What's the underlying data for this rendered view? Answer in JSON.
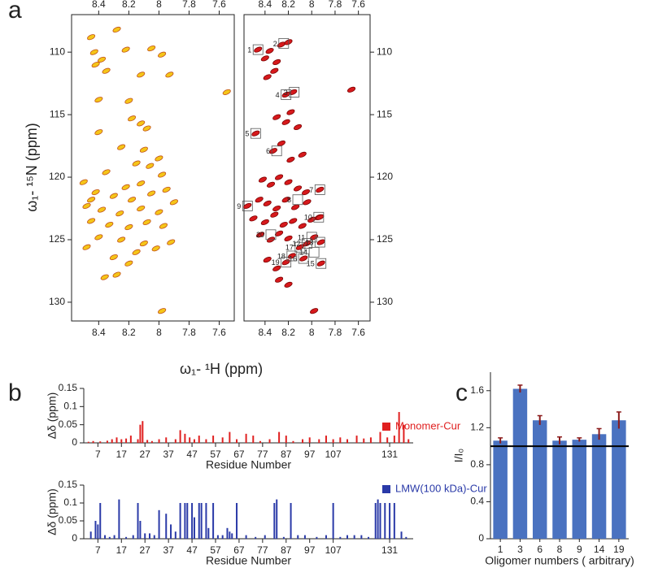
{
  "panel_labels": [
    "a",
    "b",
    "c"
  ],
  "chart_data": [
    {
      "type": "scatter",
      "color": "#f5c518",
      "stroke": "#c0501a",
      "ylabel": "ω₁- ¹⁵N (ppm)",
      "xlabel": "ω₁- ¹H (ppm)",
      "xlim": [
        7.5,
        8.58
      ],
      "invert_x": true,
      "xticks": [
        8.4,
        8.2,
        8.0,
        7.8,
        7.6
      ],
      "ylim": [
        107,
        131.5
      ],
      "invert_y": true,
      "yticks": [
        110,
        115,
        120,
        125,
        130
      ],
      "x": [
        8.45,
        8.28,
        8.43,
        8.38,
        8.42,
        8.35,
        8.22,
        8.05,
        7.98,
        8.12,
        7.93,
        7.55,
        8.4,
        8.2,
        8.18,
        8.12,
        8.08,
        8.4,
        8.25,
        8.1,
        8.0,
        8.15,
        8.06,
        7.98,
        8.35,
        8.5,
        8.22,
        8.42,
        8.3,
        8.18,
        8.05,
        7.95,
        7.9,
        8.48,
        8.38,
        8.26,
        8.12,
        8.0,
        8.45,
        8.33,
        8.2,
        8.08,
        7.97,
        7.92,
        8.4,
        8.25,
        8.1,
        8.02,
        8.3,
        8.15,
        8.36,
        8.28,
        7.98,
        8.45,
        8.12,
        8.2,
        8.48
      ],
      "y": [
        108.8,
        108.2,
        110.0,
        110.6,
        111.0,
        111.5,
        109.8,
        109.7,
        110.2,
        111.8,
        111.8,
        113.2,
        113.8,
        113.9,
        115.3,
        115.7,
        116.1,
        116.4,
        117.6,
        117.8,
        118.5,
        118.9,
        119.1,
        119.8,
        119.6,
        120.4,
        120.8,
        121.2,
        121.5,
        121.8,
        121.3,
        121.0,
        122.0,
        122.3,
        122.6,
        122.9,
        122.5,
        122.8,
        123.5,
        123.8,
        124.0,
        123.6,
        123.9,
        125.2,
        124.8,
        125.0,
        125.3,
        125.7,
        126.4,
        126.0,
        128.0,
        127.8,
        130.7,
        121.8,
        120.5,
        126.9,
        125.6
      ]
    },
    {
      "type": "scatter",
      "color": "#d7191c",
      "stroke": "#7a0000",
      "xlim": [
        7.5,
        8.58
      ],
      "invert_x": true,
      "xticks": [
        8.4,
        8.2,
        8.0,
        7.8,
        7.6
      ],
      "ylim": [
        107,
        131.5
      ],
      "invert_y": true,
      "yticks": [
        110,
        115,
        120,
        125,
        130
      ],
      "x": [
        8.46,
        8.4,
        8.36,
        8.3,
        8.26,
        8.2,
        8.32,
        8.38,
        8.16,
        8.22,
        8.18,
        7.66,
        8.48,
        8.3,
        8.22,
        8.12,
        8.26,
        8.33,
        8.18,
        8.08,
        8.42,
        8.35,
        8.28,
        8.2,
        8.12,
        8.05,
        7.93,
        8.55,
        8.45,
        8.38,
        8.3,
        8.22,
        8.14,
        8.04,
        7.94,
        8.5,
        8.4,
        8.32,
        8.24,
        8.16,
        8.08,
        8.0,
        7.93,
        8.44,
        8.35,
        8.28,
        8.2,
        8.1,
        8.04,
        7.98,
        7.92,
        8.38,
        8.3,
        8.22,
        8.17,
        8.07,
        7.92,
        8.28,
        8.2,
        7.98
      ],
      "y": [
        109.8,
        110.5,
        109.9,
        110.8,
        109.4,
        109.2,
        111.5,
        112.0,
        113.2,
        113.4,
        114.8,
        113.0,
        116.5,
        115.2,
        115.6,
        116.0,
        117.3,
        117.9,
        118.6,
        118.2,
        120.2,
        120.6,
        120.0,
        120.4,
        120.9,
        121.2,
        121.0,
        122.3,
        121.8,
        122.1,
        122.5,
        121.8,
        122.4,
        122.0,
        123.2,
        123.3,
        123.6,
        123.0,
        123.8,
        123.5,
        123.9,
        123.4,
        123.2,
        124.6,
        125.0,
        124.5,
        124.9,
        125.6,
        125.3,
        124.8,
        125.2,
        126.6,
        127.3,
        126.8,
        126.3,
        126.5,
        126.9,
        128.2,
        128.6,
        130.7
      ],
      "annotations": [
        {
          "label": "1",
          "x": 8.46,
          "y": 109.8
        },
        {
          "label": "2",
          "x": 8.24,
          "y": 109.3
        },
        {
          "label": "3",
          "x": 8.15,
          "y": 113.2
        },
        {
          "label": "4",
          "x": 8.22,
          "y": 113.4
        },
        {
          "label": "5",
          "x": 8.48,
          "y": 116.5
        },
        {
          "label": "6",
          "x": 8.3,
          "y": 117.9
        },
        {
          "label": "7",
          "x": 7.93,
          "y": 121.0
        },
        {
          "label": "8",
          "x": 8.12,
          "y": 121.8
        },
        {
          "label": "9",
          "x": 8.55,
          "y": 122.3
        },
        {
          "label": "10",
          "x": 7.94,
          "y": 123.2
        },
        {
          "label": "11",
          "x": 8.0,
          "y": 124.8
        },
        {
          "label": "12",
          "x": 8.04,
          "y": 125.3
        },
        {
          "label": "13",
          "x": 7.93,
          "y": 125.2
        },
        {
          "label": "14",
          "x": 7.98,
          "y": 126.0
        },
        {
          "label": "15",
          "x": 7.92,
          "y": 126.9
        },
        {
          "label": "16",
          "x": 8.07,
          "y": 126.5
        },
        {
          "label": "17",
          "x": 8.1,
          "y": 125.6
        },
        {
          "label": "18",
          "x": 8.17,
          "y": 126.3
        },
        {
          "label": "19",
          "x": 8.22,
          "y": 126.8
        },
        {
          "label": "20",
          "x": 8.35,
          "y": 124.6
        }
      ]
    },
    {
      "type": "bar",
      "ylabel": "Δδ (ppm)",
      "xlabel": "Residue Number",
      "xlim": [
        1,
        141
      ],
      "xticks": [
        7,
        17,
        27,
        37,
        47,
        57,
        67,
        77,
        87,
        97,
        107,
        131
      ],
      "ylim": [
        0,
        0.15
      ],
      "yticks": [
        0,
        0.05,
        0.1,
        0.15
      ],
      "x": [
        3,
        5,
        8,
        11,
        13,
        15,
        17,
        19,
        21,
        24,
        25,
        26,
        28,
        30,
        33,
        36,
        40,
        42,
        44,
        46,
        48,
        50,
        53,
        56,
        60,
        63,
        66,
        70,
        73,
        76,
        80,
        84,
        87,
        90,
        94,
        97,
        101,
        104,
        107,
        110,
        113,
        117,
        120,
        123,
        127,
        130,
        133,
        135,
        137,
        139
      ],
      "series": [
        {
          "name": "Monomer-Cur",
          "color": "#e02020",
          "values": [
            0.003,
            0.005,
            0.004,
            0.006,
            0.01,
            0.015,
            0.01,
            0.012,
            0.02,
            0.01,
            0.05,
            0.06,
            0.008,
            0.005,
            0.01,
            0.015,
            0.01,
            0.035,
            0.025,
            0.015,
            0.01,
            0.02,
            0.01,
            0.02,
            0.015,
            0.03,
            0.01,
            0.025,
            0.02,
            0.005,
            0.01,
            0.03,
            0.02,
            0.005,
            0.01,
            0.015,
            0.01,
            0.02,
            0.01,
            0.015,
            0.01,
            0.02,
            0.012,
            0.015,
            0.03,
            0.015,
            0.02,
            0.085,
            0.05,
            0.01
          ]
        }
      ]
    },
    {
      "type": "bar",
      "ylabel": "Δδ (ppm)",
      "xlabel": "Residue Number",
      "xlim": [
        1,
        141
      ],
      "xticks": [
        7,
        17,
        27,
        37,
        47,
        57,
        67,
        77,
        87,
        97,
        107,
        131
      ],
      "ylim": [
        0,
        0.15
      ],
      "yticks": [
        0,
        0.05,
        0.1,
        0.15
      ],
      "x": [
        4,
        6,
        7,
        8,
        10,
        12,
        14,
        16,
        19,
        22,
        24,
        25,
        27,
        29,
        31,
        33,
        36,
        38,
        40,
        42,
        44,
        45,
        47,
        48,
        50,
        51,
        53,
        54,
        56,
        58,
        60,
        62,
        63,
        64,
        66,
        70,
        74,
        78,
        82,
        83,
        86,
        89,
        92,
        95,
        100,
        104,
        107,
        110,
        113,
        116,
        119,
        122,
        125,
        126,
        127,
        129,
        131,
        133,
        136,
        138
      ],
      "series": [
        {
          "name": "LMW(100 kDa)-Cur",
          "color": "#2a3aa8",
          "values": [
            0.02,
            0.05,
            0.04,
            0.1,
            0.01,
            0.005,
            0.01,
            0.11,
            0.005,
            0.01,
            0.1,
            0.05,
            0.015,
            0.015,
            0.01,
            0.08,
            0.07,
            0.04,
            0.02,
            0.1,
            0.1,
            0.1,
            0.1,
            0.06,
            0.1,
            0.1,
            0.1,
            0.03,
            0.1,
            0.01,
            0.01,
            0.03,
            0.02,
            0.015,
            0.1,
            0.01,
            0.005,
            0.01,
            0.1,
            0.11,
            0.005,
            0.1,
            0.01,
            0.01,
            0.005,
            0.01,
            0.1,
            0.005,
            0.01,
            0.01,
            0.01,
            0.005,
            0.1,
            0.11,
            0.1,
            0.1,
            0.1,
            0.1,
            0.02,
            0.005
          ]
        }
      ]
    },
    {
      "type": "errorbar",
      "ylabel": "I/I₀",
      "xlabel": "Oligomer numbers ( arbitrary)",
      "color": "#4a72c0",
      "error_color": "#8b1a1a",
      "categories": [
        "1",
        "3",
        "6",
        "8",
        "9",
        "14",
        "19"
      ],
      "values": [
        1.06,
        1.62,
        1.28,
        1.06,
        1.07,
        1.13,
        1.28
      ],
      "errors": [
        0.03,
        0.04,
        0.05,
        0.04,
        0.02,
        0.06,
        0.09
      ],
      "reference_line": 1,
      "ylim": [
        0,
        1.8
      ],
      "yticks": [
        0,
        0.4,
        0.8,
        1.2,
        1.6
      ]
    }
  ]
}
